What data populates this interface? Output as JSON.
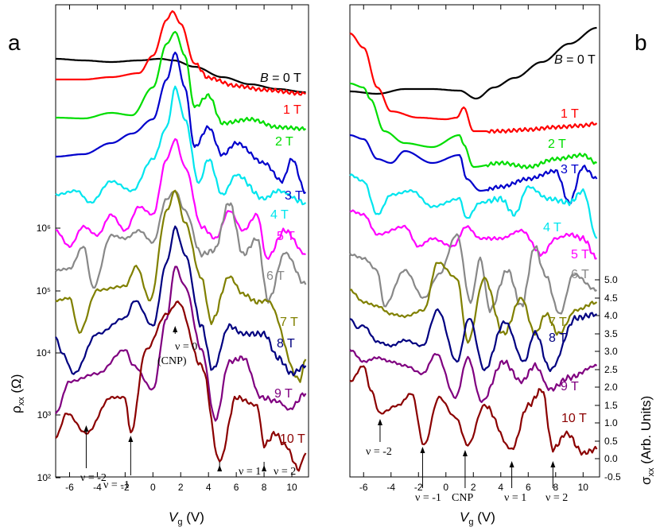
{
  "chart_data": [
    {
      "panel": "a",
      "type": "line",
      "xlabel": "V",
      "xlabel_sub": "g",
      "xlabel_unit": " (V)",
      "ylabel": "ρ",
      "ylabel_sub": "xx",
      "ylabel_unit": " (Ω)",
      "xlim": [
        -7,
        11.2
      ],
      "x_ticks": [
        -6,
        -4,
        -2,
        0,
        2,
        4,
        6,
        8,
        10
      ],
      "y_scale": "log",
      "y_ticks": [
        "10²",
        "10³",
        "10⁴",
        "10⁵",
        "10⁶"
      ],
      "grid": false,
      "series": [
        {
          "name": "B = 0 T",
          "color": "#000000",
          "x": [
            -7,
            -5,
            -3,
            -1,
            0.5,
            1.5,
            3,
            5,
            7,
            9,
            11
          ],
          "y": [
            74,
            76,
            78,
            76,
            74,
            76,
            84,
            97,
            106,
            112,
            116
          ]
        },
        {
          "name": "1 T",
          "color": "#ff0000",
          "x": [
            -7,
            -5,
            -3,
            -1,
            0,
            1,
            1.4,
            2,
            3,
            4,
            6,
            8,
            11
          ],
          "y": [
            100,
            100,
            97,
            92,
            70,
            25,
            14,
            30,
            80,
            98,
            108,
            113,
            118
          ]
        },
        {
          "name": "2 T",
          "color": "#00dd00",
          "x": [
            -7,
            -5,
            -3,
            -1.5,
            0,
            1,
            1.6,
            2.3,
            3,
            4,
            5,
            7,
            9,
            11
          ],
          "y": [
            148,
            149,
            142,
            145,
            110,
            55,
            40,
            70,
            135,
            120,
            155,
            150,
            160,
            162
          ]
        },
        {
          "name": "3 T",
          "color": "#0000cc",
          "x": [
            -7,
            -5,
            -3,
            -1.5,
            0,
            1,
            1.6,
            2.3,
            3,
            4,
            5,
            6,
            8,
            9.3,
            10,
            11
          ],
          "y": [
            197,
            194,
            180,
            168,
            150,
            100,
            66,
            110,
            185,
            160,
            195,
            180,
            205,
            228,
            200,
            242
          ]
        },
        {
          "name": "4 T",
          "color": "#00e5ee",
          "x": [
            -7,
            -5.5,
            -4.5,
            -3,
            -1.5,
            0,
            1,
            1.6,
            2.3,
            3.3,
            4,
            5,
            6,
            8,
            9,
            11
          ],
          "y": [
            245,
            240,
            255,
            228,
            240,
            200,
            160,
            110,
            150,
            230,
            200,
            245,
            220,
            250,
            240,
            255
          ]
        },
        {
          "name": "5 T",
          "color": "#ff00ff",
          "x": [
            -7,
            -6,
            -5,
            -4,
            -3,
            -2,
            -1,
            0,
            1,
            1.6,
            2.3,
            3.5,
            4.5,
            5.5,
            6.5,
            7.5,
            8.2,
            9.5,
            11
          ],
          "y": [
            290,
            310,
            285,
            296,
            270,
            290,
            260,
            270,
            200,
            175,
            210,
            285,
            300,
            265,
            290,
            270,
            325,
            290,
            320
          ]
        },
        {
          "name": "6 T",
          "color": "#888888",
          "x": [
            -7,
            -6,
            -5,
            -4.3,
            -3,
            -2,
            -1,
            0,
            1,
            1.6,
            2.3,
            3.5,
            4.4,
            5.5,
            6.5,
            7.5,
            8.3,
            9.5,
            11
          ],
          "y": [
            340,
            338,
            310,
            362,
            296,
            300,
            290,
            305,
            250,
            240,
            265,
            320,
            315,
            255,
            320,
            300,
            378,
            318,
            358
          ]
        },
        {
          "name": "7 T",
          "color": "#808000",
          "x": [
            -7,
            -6,
            -5.3,
            -4,
            -2,
            -1.2,
            -0.2,
            1,
            1.6,
            2.3,
            3.5,
            4.2,
            5.5,
            6.5,
            7.5,
            8.2,
            10.6,
            11
          ],
          "y": [
            378,
            375,
            418,
            365,
            360,
            335,
            378,
            265,
            240,
            280,
            350,
            405,
            348,
            370,
            380,
            378,
            478,
            452
          ]
        },
        {
          "name": "8 T",
          "color": "#000080",
          "x": [
            -7,
            -6.5,
            -5.7,
            -4,
            -2,
            -1.3,
            0,
            1,
            1.6,
            2.3,
            3.5,
            4.3,
            5.5,
            6.5,
            8,
            9,
            10,
            11
          ],
          "y": [
            425,
            445,
            470,
            420,
            400,
            378,
            410,
            330,
            286,
            320,
            410,
            465,
            410,
            420,
            420,
            450,
            470,
            460
          ]
        },
        {
          "name": "9 T",
          "color": "#800080",
          "x": [
            -7,
            -6,
            -4,
            -2,
            -1.4,
            0,
            1,
            1.6,
            2.3,
            3.5,
            4.5,
            5.5,
            6.5,
            7.8,
            9,
            9.8,
            11
          ],
          "y": [
            520,
            480,
            470,
            440,
            460,
            490,
            400,
            335,
            360,
            440,
            528,
            455,
            450,
            500,
            505,
            515,
            495
          ]
        },
        {
          "name": "10 T",
          "color": "#8b0000",
          "x": [
            -7,
            -6.2,
            -4.8,
            -3,
            -2,
            -1.6,
            -0.5,
            1,
            1.8,
            3.5,
            4.8,
            6,
            7.5,
            8,
            8.8,
            9.5,
            10.5,
            11
          ],
          "y": [
            550,
            520,
            545,
            500,
            500,
            545,
            440,
            395,
            380,
            460,
            580,
            500,
            510,
            560,
            545,
            560,
            590,
            570
          ]
        }
      ],
      "curve_labels": [
        {
          "text": "B",
          "suffix": " = 0 T",
          "color": "#000000"
        },
        {
          "text": "1 T",
          "color": "#ff0000"
        },
        {
          "text": "2 T",
          "color": "#00dd00"
        },
        {
          "text": "3 T",
          "color": "#0000cc"
        },
        {
          "text": "4 T",
          "color": "#00e5ee"
        },
        {
          "text": "5 T",
          "color": "#ff00ff"
        },
        {
          "text": "6 T",
          "color": "#888888"
        },
        {
          "text": "7 T",
          "color": "#808000"
        },
        {
          "text": "8 T",
          "color": "#000080"
        },
        {
          "text": "9 T",
          "color": "#800080"
        },
        {
          "text": "10 T",
          "color": "#8b0000"
        }
      ],
      "annotations": [
        {
          "text": "ν = 0",
          "text2": "(CNP)",
          "x": 1.6
        },
        {
          "text": "ν = -2",
          "x": -4.8
        },
        {
          "text": "ν = -1",
          "x": -1.6
        },
        {
          "text": "ν = 1",
          "x": 4.8
        },
        {
          "text": "ν = 2",
          "x": 8.0
        }
      ]
    },
    {
      "panel": "b",
      "type": "line",
      "xlabel": "V",
      "xlabel_sub": "g",
      "xlabel_unit": " (V)",
      "ylabel": "σ",
      "ylabel_sub": "xx",
      "ylabel_unit": " (Arb. Units)",
      "xlim": [
        -7,
        11.2
      ],
      "x_ticks": [
        -6,
        -4,
        -2,
        0,
        2,
        4,
        6,
        8,
        10
      ],
      "y_ticks": [
        "-0.5",
        "0.0",
        "0.5",
        "1.0",
        "1.5",
        "2.0",
        "2.5",
        "3.0",
        "3.5",
        "4.0",
        "4.5",
        "5.0"
      ],
      "ylim": [
        -0.5,
        5.0
      ],
      "grid": false,
      "series": [
        {
          "name": "B = 0 T",
          "color": "#000000",
          "x": [
            -7,
            -5,
            -3,
            -1,
            1,
            2.2,
            3.5,
            5,
            7,
            9,
            11
          ],
          "y": [
            115,
            118,
            112,
            112,
            114,
            124,
            110,
            98,
            78,
            55,
            35
          ]
        },
        {
          "name": "1 T",
          "color": "#ff0000",
          "x": [
            -7,
            -6,
            -5,
            -4,
            -2,
            0,
            0.8,
            1.3,
            2,
            4,
            6,
            8,
            10,
            11
          ],
          "y": [
            42,
            60,
            110,
            140,
            148,
            150,
            148,
            135,
            165,
            165,
            163,
            160,
            158,
            155
          ]
        },
        {
          "name": "2 T",
          "color": "#00dd00",
          "x": [
            -7,
            -6,
            -5.5,
            -4.5,
            -3,
            -1,
            1,
            1.3,
            2,
            4,
            6,
            8,
            10,
            11
          ],
          "y": [
            105,
            110,
            125,
            165,
            180,
            185,
            170,
            182,
            210,
            205,
            210,
            200,
            195,
            205
          ]
        },
        {
          "name": "3 T",
          "color": "#0000cc",
          "x": [
            -7,
            -6,
            -5,
            -4,
            -3,
            -1,
            1,
            1.5,
            2.5,
            4,
            6,
            8,
            9,
            10,
            11
          ],
          "y": [
            170,
            175,
            200,
            205,
            190,
            205,
            195,
            225,
            240,
            235,
            225,
            215,
            255,
            210,
            225
          ]
        },
        {
          "name": "4 T",
          "color": "#00e5ee",
          "x": [
            -7,
            -6,
            -5,
            -4,
            -2.5,
            -1,
            1,
            1.5,
            2.5,
            4,
            5,
            6,
            7.5,
            9,
            10,
            11
          ],
          "y": [
            220,
            228,
            270,
            245,
            240,
            260,
            250,
            275,
            255,
            250,
            270,
            235,
            250,
            255,
            240,
            300
          ]
        },
        {
          "name": "5 T",
          "color": "#ff00ff",
          "x": [
            -7,
            -6,
            -5,
            -3,
            -2,
            -1,
            0.5,
            1.5,
            2.5,
            4,
            5.5,
            7,
            8,
            9,
            10,
            11
          ],
          "y": [
            265,
            270,
            295,
            285,
            310,
            300,
            310,
            285,
            300,
            300,
            290,
            320,
            300,
            295,
            300,
            325
          ]
        },
        {
          "name": "6 T",
          "color": "#888888",
          "x": [
            -7,
            -6,
            -5,
            -4.5,
            -3,
            -1.6,
            -0.5,
            0.8,
            1.8,
            2.5,
            3.2,
            4.5,
            5.5,
            6.5,
            7.2,
            8.3,
            9.3,
            11
          ],
          "y": [
            320,
            325,
            340,
            385,
            340,
            375,
            345,
            295,
            380,
            325,
            390,
            340,
            385,
            310,
            345,
            395,
            345,
            365
          ]
        },
        {
          "name": "7 T",
          "color": "#808000",
          "x": [
            -7,
            -6,
            -5,
            -4,
            -3,
            -1.6,
            -0.6,
            0.8,
            1.6,
            2.8,
            4.2,
            5.5,
            6.5,
            7.3,
            8.2,
            9.5,
            11
          ],
          "y": [
            365,
            380,
            385,
            395,
            398,
            390,
            330,
            350,
            430,
            350,
            420,
            375,
            420,
            395,
            420,
            390,
            380
          ]
        },
        {
          "name": "8 T",
          "color": "#000080",
          "x": [
            -7,
            -6.5,
            -6,
            -5,
            -4,
            -3,
            -1.7,
            -0.6,
            0.8,
            1.7,
            2.8,
            4.3,
            5.7,
            6.5,
            7.6,
            9.5,
            11
          ],
          "y": [
            400,
            412,
            410,
            430,
            435,
            428,
            435,
            390,
            455,
            400,
            465,
            405,
            455,
            418,
            465,
            400,
            395
          ]
        },
        {
          "name": "9 T",
          "color": "#800080",
          "x": [
            -7,
            -6,
            -5,
            -4,
            -3,
            -1.7,
            -0.7,
            0.7,
            1.6,
            2.6,
            4.2,
            5.5,
            6.5,
            7.6,
            9,
            11
          ],
          "y": [
            440,
            455,
            450,
            455,
            460,
            470,
            445,
            500,
            450,
            505,
            455,
            480,
            460,
            490,
            475,
            460
          ]
        },
        {
          "name": "10 T",
          "color": "#8b0000",
          "x": [
            -7,
            -6,
            -5.5,
            -4.8,
            -3.5,
            -2.5,
            -1.6,
            -0.5,
            0.7,
            1.6,
            2.8,
            4.8,
            6,
            7,
            7.8,
            8.8,
            10,
            11
          ],
          "y": [
            480,
            460,
            490,
            520,
            510,
            495,
            560,
            500,
            525,
            560,
            510,
            565,
            510,
            490,
            565,
            545,
            570,
            565
          ]
        }
      ],
      "curve_labels": [
        {
          "text": "B",
          "suffix": " = 0 T",
          "color": "#000000"
        },
        {
          "text": "1 T",
          "color": "#ff0000"
        },
        {
          "text": "2 T",
          "color": "#00dd00"
        },
        {
          "text": "3 T",
          "color": "#0000cc"
        },
        {
          "text": "4 T",
          "color": "#00e5ee"
        },
        {
          "text": "5 T",
          "color": "#ff00ff"
        },
        {
          "text": "6 T",
          "color": "#888888"
        },
        {
          "text": "7 T",
          "color": "#808000"
        },
        {
          "text": "8 T",
          "color": "#000080"
        },
        {
          "text": "9 T",
          "color": "#800080"
        },
        {
          "text": "10 T",
          "color": "#8b0000"
        }
      ],
      "annotations": [
        {
          "text": "ν = -2",
          "x": -4.8
        },
        {
          "text": "ν = -1",
          "x": -1.7
        },
        {
          "text": "CNP",
          "x": 1.4
        },
        {
          "text": "ν = 1",
          "x": 4.8
        },
        {
          "text": "ν = 2",
          "x": 7.8
        }
      ]
    }
  ]
}
